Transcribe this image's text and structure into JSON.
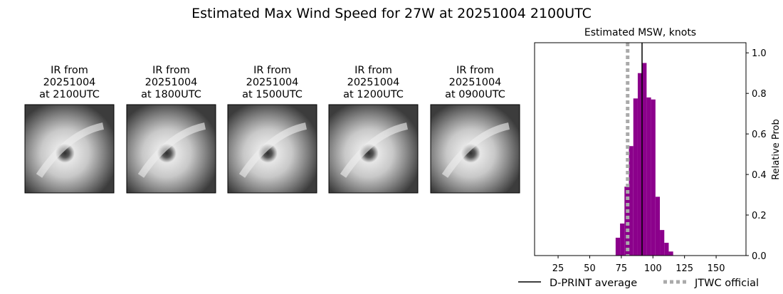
{
  "title": "Estimated Max Wind Speed for 27W at 20251004 2100UTC",
  "panels": [
    {
      "label": [
        "IR from",
        "20251004",
        "at 2100UTC"
      ]
    },
    {
      "label": [
        "IR from",
        "20251004",
        "at 1800UTC"
      ]
    },
    {
      "label": [
        "IR from",
        "20251004",
        "at 1500UTC"
      ]
    },
    {
      "label": [
        "IR from",
        "20251004",
        "at 1200UTC"
      ]
    },
    {
      "label": [
        "IR from",
        "20251004",
        "at 0900UTC"
      ]
    }
  ],
  "chart_data": {
    "type": "histogram",
    "title": "Estimated MSW, knots",
    "y_label": "Relative Prob",
    "bins": [
      70.5,
      74,
      77.5,
      81,
      84.5,
      88,
      91.5,
      95,
      98.5,
      102,
      105.5,
      109,
      112.5,
      116
    ],
    "counts": [
      0.088,
      0.158,
      0.34,
      0.54,
      0.775,
      0.9,
      0.95,
      0.78,
      0.77,
      0.29,
      0.126,
      0.063,
      0.02
    ],
    "color": "#8b008b",
    "xlim": [
      6.4,
      173.6
    ],
    "xticks": [
      25,
      50,
      75,
      100,
      125,
      150
    ],
    "ylim": [
      0,
      1.05
    ],
    "yticks": [
      {
        "value": 0,
        "label": "0.0"
      },
      {
        "value": 0.2,
        "label": "0.2"
      },
      {
        "value": 0.4,
        "label": "0.4"
      },
      {
        "value": 0.6,
        "label": "0.6"
      },
      {
        "value": 0.8,
        "label": "0.8"
      },
      {
        "value": 1,
        "label": "1.0"
      }
    ],
    "lines": [
      {
        "name": "D-PRINT average",
        "value": 91.4,
        "color": "#000000",
        "style": "solid"
      },
      {
        "name": "JTWC official",
        "value": 80,
        "color": "#aaaaaa",
        "style": "dotted"
      }
    ]
  }
}
